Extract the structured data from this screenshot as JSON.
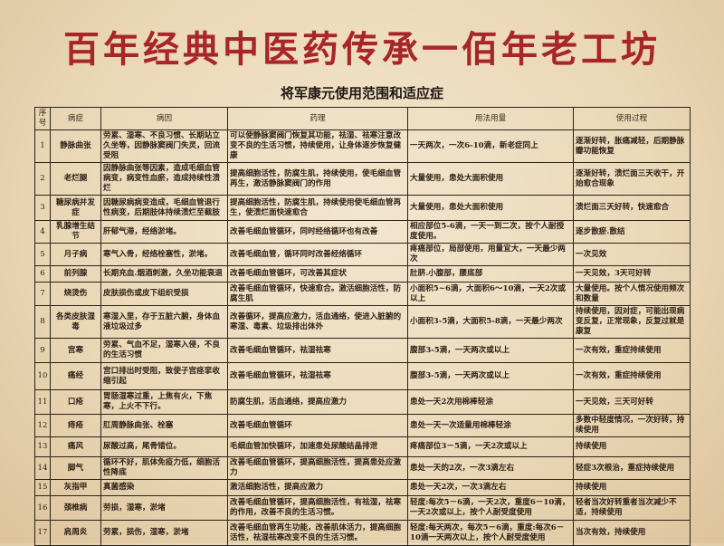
{
  "banner": "百年经典中医药传承一佰年老工坊",
  "subtitle": "将军康元使用范围和适应症",
  "colors": {
    "banner": "#a8252a",
    "background": "#ead7b6",
    "border": "#2b2219"
  },
  "headers": [
    "序号",
    "病症",
    "病因",
    "药理",
    "用法用量",
    "使用过程"
  ],
  "rows": [
    {
      "no": "1",
      "name": "静脉曲张",
      "cause": "劳累、湿寒、不良习惯、长期站立久坐等，因静脉窦阀门失灵，回流受阻",
      "pharm": "可以使静脉窦阀门恢复其功能，祛湿、祛寒注意改变不良的生活习惯，持续使用，让身体逐步恢复健康",
      "usage": "一天两次，一次6-10滴，新老症同上",
      "process": "逐渐好转，胀痛减轻，后期静脉瓣功能恢复"
    },
    {
      "no": "2",
      "name": "老烂腿",
      "cause": "因静脉曲张等因素，造成毛细血管病变，病变性血瘀，造成持续性溃烂",
      "pharm": "提高细胞活性，防腐生肌，持续使用，使毛细血管再生，激活静脉窦阀门的作用",
      "usage": "大量使用，患处大面积使用",
      "process": "逐渐好转，溃烂面三天收干，开始愈合现象"
    },
    {
      "no": "3",
      "name": "糖尿病并发症",
      "cause": "因糖尿病病变造成，毛细血管退行性病变，后期肢体持续溃烂至截肢",
      "pharm": "提高细胞活性，防腐生肌，持续使用使毛细血管再生，使溃烂面快速愈合",
      "usage": "大量使用，患处大面积使用",
      "process": "溃烂面三天好转，快速愈合"
    },
    {
      "no": "4",
      "name": "乳腺增生结节",
      "cause": "肝郁气滞，经络淤堵。",
      "pharm": "改善毛细血管循环，同时经络循环也有改善",
      "usage": "相应部位5-6滴，一天一到二次，按个人耐授度使用。",
      "process": "逐步散瘀.散结"
    },
    {
      "no": "5",
      "name": "月子病",
      "cause": "寒气入骨，经络栓塞性，淤堵。",
      "pharm": "改善毛细血管，循环同时改善经络循环",
      "usage": "疼痛部位，局部使用，用量宜大，一天最少两次",
      "process": "一次见效"
    },
    {
      "no": "6",
      "name": "前列腺",
      "cause": "长期充血.烟酒刺激，久坐功能衰退",
      "pharm": "改善毛细血管循环，可改善其症状",
      "usage": "肚脐.小腹部，腰底部",
      "process": "一天见效，3天可好转"
    },
    {
      "no": "7",
      "name": "烧烫伤",
      "cause": "皮肤损伤或皮下组织受损",
      "pharm": "改善毛细血管循环，快速愈合。激活细胞活性，防腐生肌",
      "usage": "小面积5~6滴，大面积6～10滴，一天2次或以上",
      "process": "大量使用。按个人情况使用频次和数量"
    },
    {
      "no": "8",
      "name": "各类皮肤湿毒",
      "cause": "寒湿入里，存于五脏六腑，身体血液垃圾过多",
      "pharm": "改善循环，提高应激力，活血通络，使进入脏腑的寒湿、毒素、垃圾排出体外",
      "usage": "小面积3-5滴，大面积5-8滴，一天最少两次",
      "process": "持续使用，因对症，可能出现病变反复，正常现象，反复过就是康复"
    },
    {
      "no": "9",
      "name": "宫寒",
      "cause": "劳累、气血不足，湿寒入侵，不良的生活习惯",
      "pharm": "改善毛细血管循环，祛湿祛寒",
      "usage": "腹部3-5滴，一天两次或以上",
      "process": "一次有效，重症持续使用"
    },
    {
      "no": "10",
      "name": "痛经",
      "cause": "宫口排出时受阻，致使子宫痉挛收缩引起",
      "pharm": "改善毛细血管循环，祛湿祛寒",
      "usage": "腹部3-5滴，一天两次或以上",
      "process": "一次有效，重症持续使用"
    },
    {
      "no": "11",
      "name": "口疮",
      "cause": "胃肠湿寒过重，上焦有火，下焦寒，上火不下行。",
      "pharm": "防腐生肌，活血通络，提高应激力",
      "usage": "患处一天2次用棉棒轻涂",
      "process": "一天见效，三天可好转"
    },
    {
      "no": "12",
      "name": "痔疮",
      "cause": "肛周静脉曲张、栓塞",
      "pharm": "改善毛细血管循环",
      "usage": "患处一天一次适量用棉棒轻涂",
      "process": "多数中轻度情况，一次好转，持续使用"
    },
    {
      "no": "13",
      "name": "痛风",
      "cause": "尿酸过高，尾骨错位。",
      "pharm": "毛细血管加快循环，加速患处尿酸结晶排泄",
      "usage": "疼痛部位3－5滴，一天2次或以上",
      "process": "持续使用"
    },
    {
      "no": "14",
      "name": "脚气",
      "cause": "循环不好，肌体免疫力低，细胞活性降底",
      "pharm": "改善毛细血管循环，提高细胞活性，提高患处应激力",
      "usage": "患处一天的2次，一次3滴左右",
      "process": "轻症3次根治，重症持续使用"
    },
    {
      "no": "15",
      "name": "灰指甲",
      "cause": "真菌感染",
      "pharm": "激活细胞活性，提高应激力",
      "usage": "患处一天2次，一次3滴左右",
      "process": "持续使用"
    },
    {
      "no": "16",
      "name": "颈椎病",
      "cause": "劳损，湿寒，淤堵",
      "pharm": "改善毛细血管循环，提高细胞活性，有祛湿，祛寒的作用，改善不良的生活习惯。",
      "usage": "轻度:每次5－6滴，一天2次，重度6－10滴，一天2次或以上，按个人耐受度使用",
      "process": "轻者当次好转重者当次减少不适，持续使用"
    },
    {
      "no": "17",
      "name": "肩周炎",
      "cause": "劳累，损伤，湿寒，淤堵",
      "pharm": "改善毛细血管再生功能，改善肌体活力，提高细胞活性，祛湿祛寒改变不良的生活习惯。",
      "usage": "轻度:每天两次，每次5－6滴，重度:每次6－10滴一天两次以上，按个人耐受度使用",
      "process": "当次有效，持续使用"
    }
  ]
}
